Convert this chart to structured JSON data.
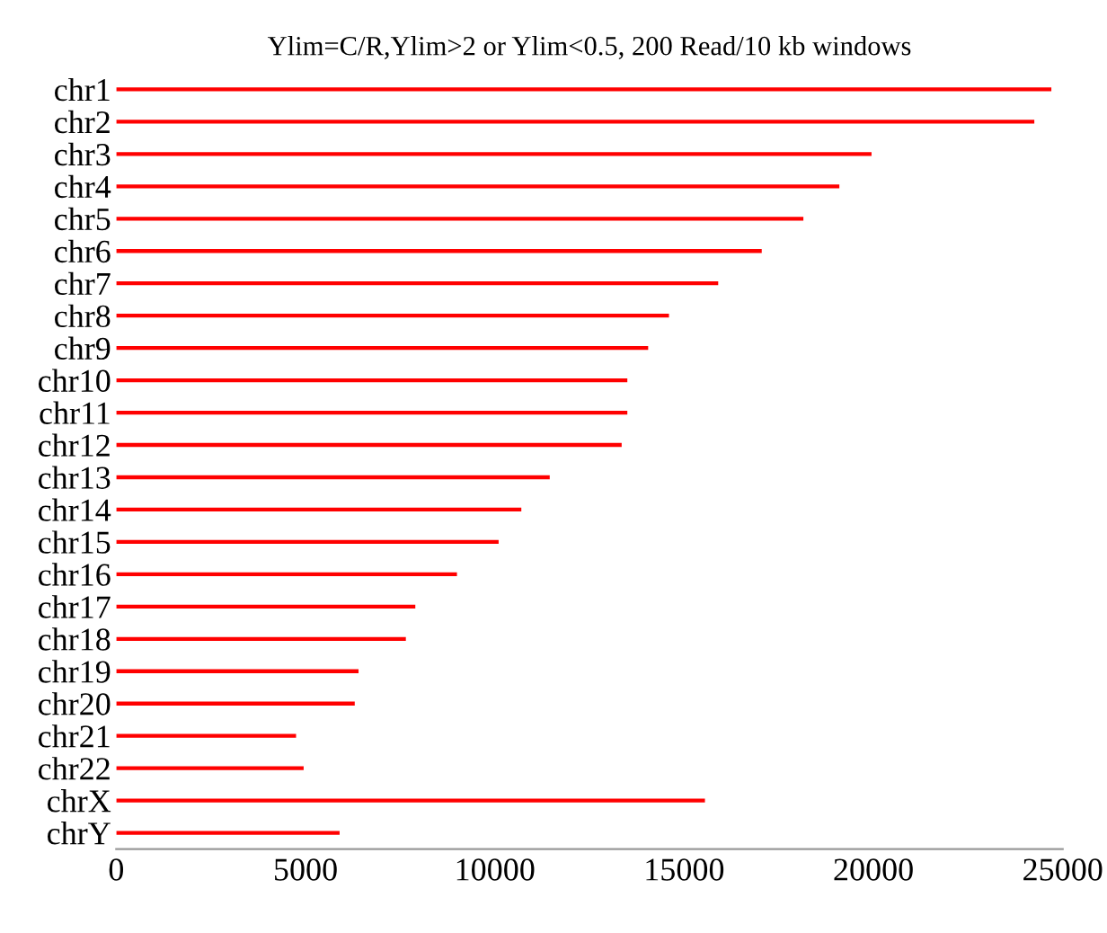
{
  "chart_data": {
    "type": "bar",
    "orientation": "horizontal",
    "title": "Ylim=C/R,Ylim>2 or Ylim<0.5, 200 Read/10 kb windows",
    "categories": [
      "chr1",
      "chr2",
      "chr3",
      "chr4",
      "chr5",
      "chr6",
      "chr7",
      "chr8",
      "chr9",
      "chr10",
      "chr11",
      "chr12",
      "chr13",
      "chr14",
      "chr15",
      "chr16",
      "chr17",
      "chr18",
      "chr19",
      "chr20",
      "chr21",
      "chr22",
      "chrX",
      "chrY"
    ],
    "values": [
      24700,
      24250,
      19950,
      19100,
      18150,
      17050,
      15900,
      14600,
      14050,
      13500,
      13500,
      13350,
      11450,
      10700,
      10100,
      9000,
      7900,
      7650,
      6400,
      6300,
      4750,
      4950,
      15550,
      5900
    ],
    "color": "#ff0000",
    "xlim": [
      0,
      25000
    ],
    "xticks": [
      0,
      5000,
      10000,
      15000,
      20000,
      25000
    ],
    "grid": false,
    "legend": false
  }
}
